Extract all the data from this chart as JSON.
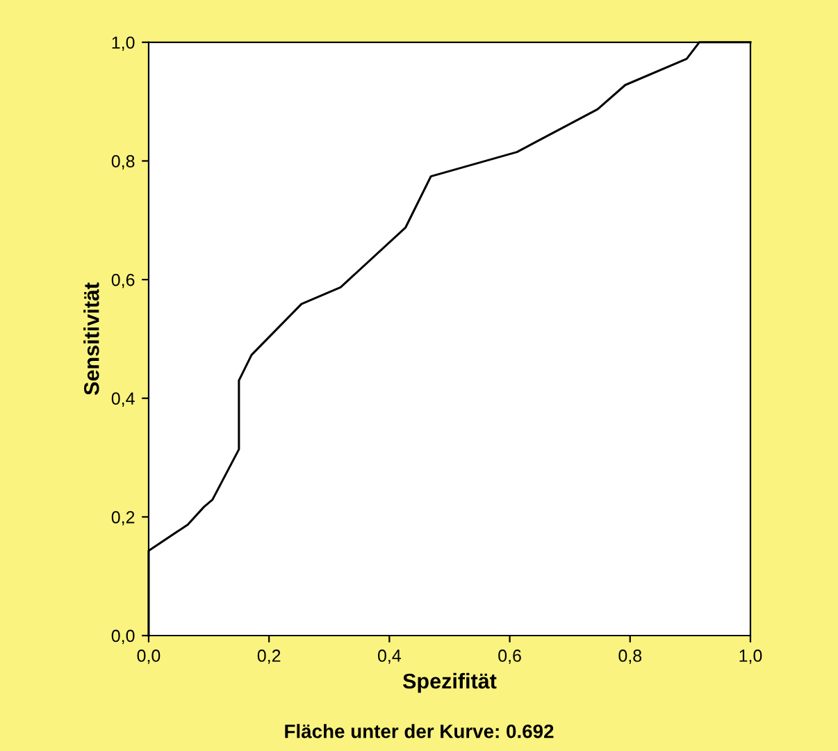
{
  "chart_data": {
    "type": "line",
    "xlabel": "Spezifität",
    "ylabel": "Sensitivität",
    "annotations": [
      "Fläche unter der Kurve: 0.692"
    ],
    "x": [
      0,
      0,
      0.065,
      0.092,
      0.106,
      0.15,
      0.15,
      0.171,
      0.254,
      0.319,
      0.427,
      0.469,
      0.612,
      0.746,
      0.792,
      0.894,
      0.915,
      1.0
    ],
    "series": [
      {
        "color": "#000000",
        "values": [
          0,
          0.143,
          0.187,
          0.217,
          0.229,
          0.314,
          0.43,
          0.473,
          0.559,
          0.587,
          0.688,
          0.774,
          0.815,
          0.887,
          0.928,
          0.972,
          1.0,
          1.0
        ]
      }
    ],
    "xlim": [
      0,
      1
    ],
    "ylim": [
      0,
      1
    ],
    "xticks": [
      {
        "value": 0,
        "label": "0,0"
      },
      {
        "value": 0.2,
        "label": "0,2"
      },
      {
        "value": 0.4,
        "label": "0,4"
      },
      {
        "value": 0.6,
        "label": "0,6"
      },
      {
        "value": 0.8,
        "label": "0,8"
      },
      {
        "value": 1,
        "label": "1,0"
      }
    ],
    "yticks": [
      {
        "value": 0,
        "label": "0,0"
      },
      {
        "value": 0.2,
        "label": "0,2"
      },
      {
        "value": 0.4,
        "label": "0,4"
      },
      {
        "value": 0.6,
        "label": "0,6"
      },
      {
        "value": 0.8,
        "label": "0,8"
      },
      {
        "value": 1,
        "label": "1,0"
      }
    ],
    "grid": false,
    "legend": false,
    "marker": "none",
    "line_style": "solid"
  }
}
